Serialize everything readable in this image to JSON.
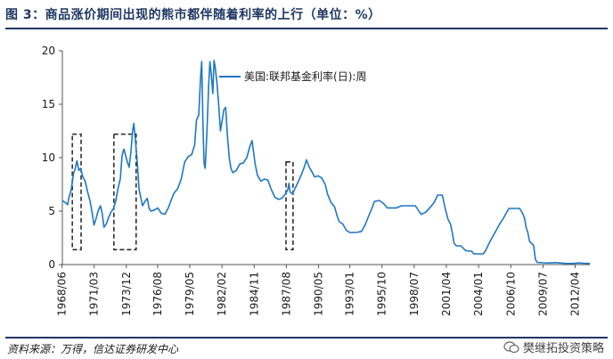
{
  "figure": {
    "title": "图 3：商品涨价期间出现的熊市都伴随着利率的上行（单位：%）",
    "source": "资料来源：万得，信达证券研发中心",
    "watermark": "樊继拓投资策略",
    "colors": {
      "line": "#1f77c4",
      "rule": "#1f3864",
      "box": "#222222"
    }
  },
  "chart_data": {
    "type": "line",
    "title": "",
    "xlabel": "",
    "ylabel": "",
    "ylim": [
      0,
      20
    ],
    "yticks": [
      0,
      5,
      10,
      15,
      20
    ],
    "xlim": [
      1968.45,
      2013.5
    ],
    "xticks": [
      "1968/06",
      "1971/03",
      "1973/12",
      "1976/08",
      "1979/05",
      "1982/02",
      "1984/11",
      "1987/08",
      "1990/05",
      "1993/01",
      "1995/10",
      "1998/07",
      "2001/04",
      "2004/01",
      "2006/10",
      "2009/07",
      "2012/04"
    ],
    "legend": {
      "placement": "top-center",
      "label": "美国:联邦基金利率(日):周"
    },
    "grid": false,
    "series": [
      {
        "name": "美国:联邦基金利率(日):周",
        "points": [
          [
            1968.45,
            6.0
          ],
          [
            1968.7,
            5.8
          ],
          [
            1968.9,
            5.6
          ],
          [
            1969.0,
            6.2
          ],
          [
            1969.2,
            7.0
          ],
          [
            1969.4,
            8.5
          ],
          [
            1969.55,
            9.0
          ],
          [
            1969.7,
            9.7
          ],
          [
            1969.85,
            8.8
          ],
          [
            1970.0,
            9.0
          ],
          [
            1970.2,
            8.2
          ],
          [
            1970.4,
            7.8
          ],
          [
            1970.6,
            6.8
          ],
          [
            1970.8,
            6.0
          ],
          [
            1971.0,
            4.8
          ],
          [
            1971.15,
            3.7
          ],
          [
            1971.3,
            4.2
          ],
          [
            1971.5,
            5.0
          ],
          [
            1971.7,
            5.5
          ],
          [
            1971.85,
            4.8
          ],
          [
            1972.0,
            3.5
          ],
          [
            1972.2,
            3.8
          ],
          [
            1972.4,
            4.4
          ],
          [
            1972.6,
            4.9
          ],
          [
            1972.8,
            5.2
          ],
          [
            1973.0,
            5.9
          ],
          [
            1973.2,
            7.1
          ],
          [
            1973.4,
            8.0
          ],
          [
            1973.55,
            10.2
          ],
          [
            1973.7,
            10.8
          ],
          [
            1973.85,
            10.2
          ],
          [
            1974.0,
            9.6
          ],
          [
            1974.15,
            9.1
          ],
          [
            1974.3,
            10.5
          ],
          [
            1974.45,
            12.5
          ],
          [
            1974.55,
            13.2
          ],
          [
            1974.7,
            11.5
          ],
          [
            1974.85,
            9.5
          ],
          [
            1975.0,
            7.0
          ],
          [
            1975.15,
            6.3
          ],
          [
            1975.3,
            5.5
          ],
          [
            1975.5,
            5.9
          ],
          [
            1975.7,
            6.2
          ],
          [
            1975.85,
            5.3
          ],
          [
            1976.0,
            5.0
          ],
          [
            1976.3,
            5.1
          ],
          [
            1976.6,
            5.3
          ],
          [
            1976.9,
            4.8
          ],
          [
            1977.2,
            4.7
          ],
          [
            1977.5,
            5.3
          ],
          [
            1977.8,
            6.2
          ],
          [
            1978.0,
            6.7
          ],
          [
            1978.3,
            7.1
          ],
          [
            1978.6,
            8.0
          ],
          [
            1978.9,
            9.6
          ],
          [
            1979.2,
            10.1
          ],
          [
            1979.5,
            10.3
          ],
          [
            1979.75,
            11.2
          ],
          [
            1979.9,
            13.5
          ],
          [
            1980.1,
            14.0
          ],
          [
            1980.25,
            17.5
          ],
          [
            1980.35,
            19.0
          ],
          [
            1980.45,
            13.5
          ],
          [
            1980.55,
            9.5
          ],
          [
            1980.65,
            9.0
          ],
          [
            1980.8,
            12.5
          ],
          [
            1980.95,
            17.0
          ],
          [
            1981.05,
            19.0
          ],
          [
            1981.15,
            18.0
          ],
          [
            1981.3,
            16.0
          ],
          [
            1981.4,
            19.1
          ],
          [
            1981.5,
            18.5
          ],
          [
            1981.65,
            17.0
          ],
          [
            1981.8,
            15.0
          ],
          [
            1981.95,
            12.5
          ],
          [
            1982.1,
            13.5
          ],
          [
            1982.25,
            14.5
          ],
          [
            1982.4,
            14.7
          ],
          [
            1982.55,
            12.0
          ],
          [
            1982.7,
            10.0
          ],
          [
            1982.85,
            9.0
          ],
          [
            1983.0,
            8.6
          ],
          [
            1983.3,
            8.8
          ],
          [
            1983.6,
            9.4
          ],
          [
            1983.9,
            9.5
          ],
          [
            1984.2,
            10.0
          ],
          [
            1984.45,
            11.0
          ],
          [
            1984.65,
            11.6
          ],
          [
            1984.9,
            9.5
          ],
          [
            1985.1,
            8.4
          ],
          [
            1985.4,
            7.8
          ],
          [
            1985.7,
            8.0
          ],
          [
            1986.0,
            7.9
          ],
          [
            1986.3,
            7.0
          ],
          [
            1986.6,
            6.3
          ],
          [
            1986.9,
            6.1
          ],
          [
            1987.2,
            6.2
          ],
          [
            1987.5,
            6.6
          ],
          [
            1987.7,
            7.0
          ],
          [
            1987.8,
            7.6
          ],
          [
            1987.9,
            6.8
          ],
          [
            1988.1,
            6.6
          ],
          [
            1988.4,
            7.3
          ],
          [
            1988.7,
            8.0
          ],
          [
            1988.9,
            8.5
          ],
          [
            1989.1,
            9.1
          ],
          [
            1989.3,
            9.8
          ],
          [
            1989.5,
            9.2
          ],
          [
            1989.8,
            8.6
          ],
          [
            1990.0,
            8.2
          ],
          [
            1990.3,
            8.3
          ],
          [
            1990.6,
            8.1
          ],
          [
            1990.9,
            7.5
          ],
          [
            1991.1,
            6.6
          ],
          [
            1991.4,
            5.8
          ],
          [
            1991.7,
            5.4
          ],
          [
            1991.9,
            4.6
          ],
          [
            1992.1,
            4.0
          ],
          [
            1992.4,
            3.8
          ],
          [
            1992.7,
            3.2
          ],
          [
            1993.0,
            3.0
          ],
          [
            1993.5,
            3.0
          ],
          [
            1994.0,
            3.1
          ],
          [
            1994.3,
            3.7
          ],
          [
            1994.6,
            4.5
          ],
          [
            1994.9,
            5.3
          ],
          [
            1995.1,
            5.9
          ],
          [
            1995.5,
            6.0
          ],
          [
            1995.9,
            5.7
          ],
          [
            1996.2,
            5.3
          ],
          [
            1996.6,
            5.3
          ],
          [
            1997.0,
            5.3
          ],
          [
            1997.4,
            5.5
          ],
          [
            1997.8,
            5.5
          ],
          [
            1998.2,
            5.5
          ],
          [
            1998.6,
            5.5
          ],
          [
            1998.9,
            5.0
          ],
          [
            1999.1,
            4.7
          ],
          [
            1999.5,
            4.9
          ],
          [
            1999.9,
            5.4
          ],
          [
            2000.2,
            5.8
          ],
          [
            2000.5,
            6.5
          ],
          [
            2000.9,
            6.5
          ],
          [
            2001.0,
            6.0
          ],
          [
            2001.2,
            5.0
          ],
          [
            2001.4,
            4.2
          ],
          [
            2001.6,
            3.8
          ],
          [
            2001.75,
            3.0
          ],
          [
            2001.9,
            2.0
          ],
          [
            2002.1,
            1.75
          ],
          [
            2002.5,
            1.75
          ],
          [
            2002.9,
            1.3
          ],
          [
            2003.4,
            1.25
          ],
          [
            2003.6,
            1.0
          ],
          [
            2004.0,
            1.0
          ],
          [
            2004.4,
            1.0
          ],
          [
            2004.6,
            1.3
          ],
          [
            2004.9,
            2.0
          ],
          [
            2005.2,
            2.6
          ],
          [
            2005.5,
            3.2
          ],
          [
            2005.8,
            3.8
          ],
          [
            2006.1,
            4.3
          ],
          [
            2006.4,
            4.9
          ],
          [
            2006.6,
            5.25
          ],
          [
            2007.0,
            5.25
          ],
          [
            2007.5,
            5.25
          ],
          [
            2007.65,
            5.0
          ],
          [
            2007.8,
            4.7
          ],
          [
            2007.95,
            4.2
          ],
          [
            2008.05,
            3.5
          ],
          [
            2008.2,
            3.0
          ],
          [
            2008.35,
            2.2
          ],
          [
            2008.5,
            2.0
          ],
          [
            2008.7,
            1.8
          ],
          [
            2008.85,
            0.5
          ],
          [
            2009.0,
            0.2
          ],
          [
            2009.5,
            0.17
          ],
          [
            2010.0,
            0.15
          ],
          [
            2010.5,
            0.18
          ],
          [
            2011.0,
            0.15
          ],
          [
            2011.5,
            0.1
          ],
          [
            2012.0,
            0.1
          ],
          [
            2012.5,
            0.15
          ],
          [
            2013.0,
            0.12
          ],
          [
            2013.5,
            0.1
          ]
        ]
      }
    ],
    "boxes": [
      {
        "x0": 1969.3,
        "x1": 1970.05,
        "y0": 1.4,
        "y1": 12.2
      },
      {
        "x0": 1972.85,
        "x1": 1974.75,
        "y0": 1.4,
        "y1": 12.2
      },
      {
        "x0": 1987.55,
        "x1": 1988.15,
        "y0": 1.4,
        "y1": 9.6
      }
    ]
  }
}
